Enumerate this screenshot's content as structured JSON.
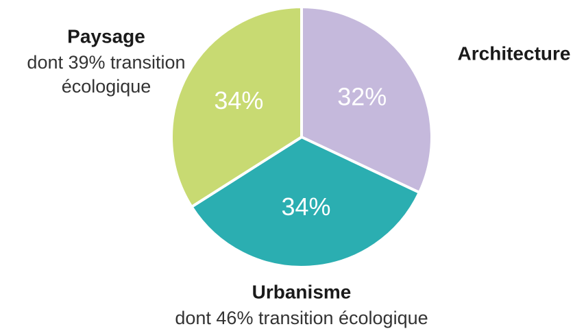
{
  "chart_data": {
    "type": "pie",
    "categories": [
      "Architecture",
      "Urbanisme",
      "Paysage"
    ],
    "values": [
      32,
      34,
      34
    ],
    "value_labels": [
      "32%",
      "34%",
      "34%"
    ],
    "colors": [
      "#c5b9dc",
      "#2baeb1",
      "#c8da72"
    ],
    "annotations": [
      null,
      [
        "dont 46% transition écologique"
      ],
      [
        "dont 39% transition",
        "écologique"
      ]
    ]
  }
}
